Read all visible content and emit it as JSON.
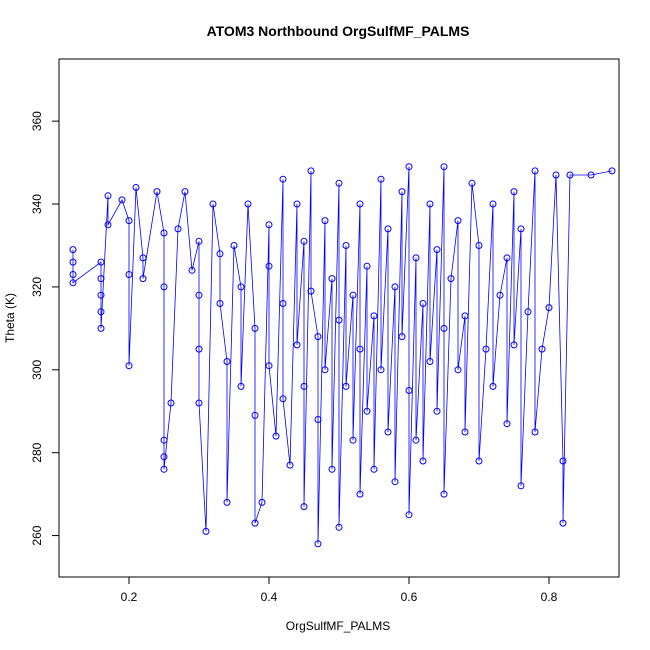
{
  "chart_data": {
    "type": "scatter",
    "title": "ATOM3 Northbound OrgSulfMF_PALMS",
    "xlabel": "OrgSulfMF_PALMS",
    "ylabel": "Theta (K)",
    "xlim": [
      0.1,
      0.9
    ],
    "ylim": [
      250,
      375
    ],
    "xticks": [
      0.2,
      0.4,
      0.6,
      0.8
    ],
    "yticks": [
      260,
      280,
      300,
      320,
      340,
      360
    ],
    "grid": false,
    "legend": "none",
    "series_color": "#0000ff",
    "markers": "open-circle",
    "connected": true,
    "points": [
      [
        0.12,
        329
      ],
      [
        0.12,
        326
      ],
      [
        0.12,
        323
      ],
      [
        0.12,
        321
      ],
      [
        0.16,
        326
      ],
      [
        0.16,
        322
      ],
      [
        0.16,
        318
      ],
      [
        0.16,
        314
      ],
      [
        0.16,
        310
      ],
      [
        0.17,
        342
      ],
      [
        0.17,
        335
      ],
      [
        0.19,
        341
      ],
      [
        0.2,
        336
      ],
      [
        0.2,
        323
      ],
      [
        0.2,
        301
      ],
      [
        0.21,
        344
      ],
      [
        0.22,
        327
      ],
      [
        0.22,
        322
      ],
      [
        0.24,
        343
      ],
      [
        0.25,
        333
      ],
      [
        0.25,
        320
      ],
      [
        0.25,
        283
      ],
      [
        0.25,
        279
      ],
      [
        0.25,
        276
      ],
      [
        0.26,
        292
      ],
      [
        0.27,
        334
      ],
      [
        0.28,
        343
      ],
      [
        0.29,
        324
      ],
      [
        0.3,
        331
      ],
      [
        0.3,
        318
      ],
      [
        0.3,
        305
      ],
      [
        0.3,
        292
      ],
      [
        0.31,
        261
      ],
      [
        0.32,
        340
      ],
      [
        0.33,
        328
      ],
      [
        0.33,
        316
      ],
      [
        0.34,
        302
      ],
      [
        0.34,
        268
      ],
      [
        0.35,
        330
      ],
      [
        0.36,
        320
      ],
      [
        0.36,
        296
      ],
      [
        0.37,
        340
      ],
      [
        0.38,
        310
      ],
      [
        0.38,
        289
      ],
      [
        0.38,
        263
      ],
      [
        0.39,
        268
      ],
      [
        0.4,
        335
      ],
      [
        0.4,
        325
      ],
      [
        0.4,
        301
      ],
      [
        0.41,
        284
      ],
      [
        0.42,
        346
      ],
      [
        0.42,
        316
      ],
      [
        0.42,
        293
      ],
      [
        0.43,
        277
      ],
      [
        0.44,
        340
      ],
      [
        0.44,
        306
      ],
      [
        0.45,
        331
      ],
      [
        0.45,
        296
      ],
      [
        0.45,
        267
      ],
      [
        0.46,
        348
      ],
      [
        0.46,
        319
      ],
      [
        0.47,
        308
      ],
      [
        0.47,
        288
      ],
      [
        0.47,
        258
      ],
      [
        0.48,
        336
      ],
      [
        0.48,
        300
      ],
      [
        0.49,
        322
      ],
      [
        0.49,
        276
      ],
      [
        0.5,
        345
      ],
      [
        0.5,
        312
      ],
      [
        0.5,
        262
      ],
      [
        0.51,
        330
      ],
      [
        0.51,
        296
      ],
      [
        0.52,
        318
      ],
      [
        0.52,
        283
      ],
      [
        0.53,
        340
      ],
      [
        0.53,
        305
      ],
      [
        0.53,
        270
      ],
      [
        0.54,
        325
      ],
      [
        0.54,
        290
      ],
      [
        0.55,
        313
      ],
      [
        0.55,
        276
      ],
      [
        0.56,
        346
      ],
      [
        0.56,
        300
      ],
      [
        0.57,
        334
      ],
      [
        0.57,
        285
      ],
      [
        0.58,
        320
      ],
      [
        0.58,
        273
      ],
      [
        0.59,
        343
      ],
      [
        0.59,
        308
      ],
      [
        0.6,
        349
      ],
      [
        0.6,
        295
      ],
      [
        0.6,
        265
      ],
      [
        0.61,
        327
      ],
      [
        0.61,
        283
      ],
      [
        0.62,
        316
      ],
      [
        0.62,
        278
      ],
      [
        0.63,
        340
      ],
      [
        0.63,
        302
      ],
      [
        0.64,
        329
      ],
      [
        0.64,
        290
      ],
      [
        0.65,
        349
      ],
      [
        0.65,
        310
      ],
      [
        0.65,
        270
      ],
      [
        0.66,
        322
      ],
      [
        0.67,
        336
      ],
      [
        0.67,
        300
      ],
      [
        0.68,
        313
      ],
      [
        0.68,
        285
      ],
      [
        0.69,
        345
      ],
      [
        0.7,
        330
      ],
      [
        0.7,
        278
      ],
      [
        0.71,
        305
      ],
      [
        0.72,
        340
      ],
      [
        0.72,
        296
      ],
      [
        0.73,
        318
      ],
      [
        0.74,
        327
      ],
      [
        0.74,
        287
      ],
      [
        0.75,
        343
      ],
      [
        0.75,
        306
      ],
      [
        0.76,
        334
      ],
      [
        0.76,
        272
      ],
      [
        0.77,
        314
      ],
      [
        0.78,
        348
      ],
      [
        0.78,
        285
      ],
      [
        0.79,
        305
      ],
      [
        0.8,
        315
      ],
      [
        0.81,
        347
      ],
      [
        0.82,
        278
      ],
      [
        0.82,
        263
      ],
      [
        0.83,
        347
      ],
      [
        0.86,
        347
      ],
      [
        0.89,
        348
      ]
    ]
  }
}
